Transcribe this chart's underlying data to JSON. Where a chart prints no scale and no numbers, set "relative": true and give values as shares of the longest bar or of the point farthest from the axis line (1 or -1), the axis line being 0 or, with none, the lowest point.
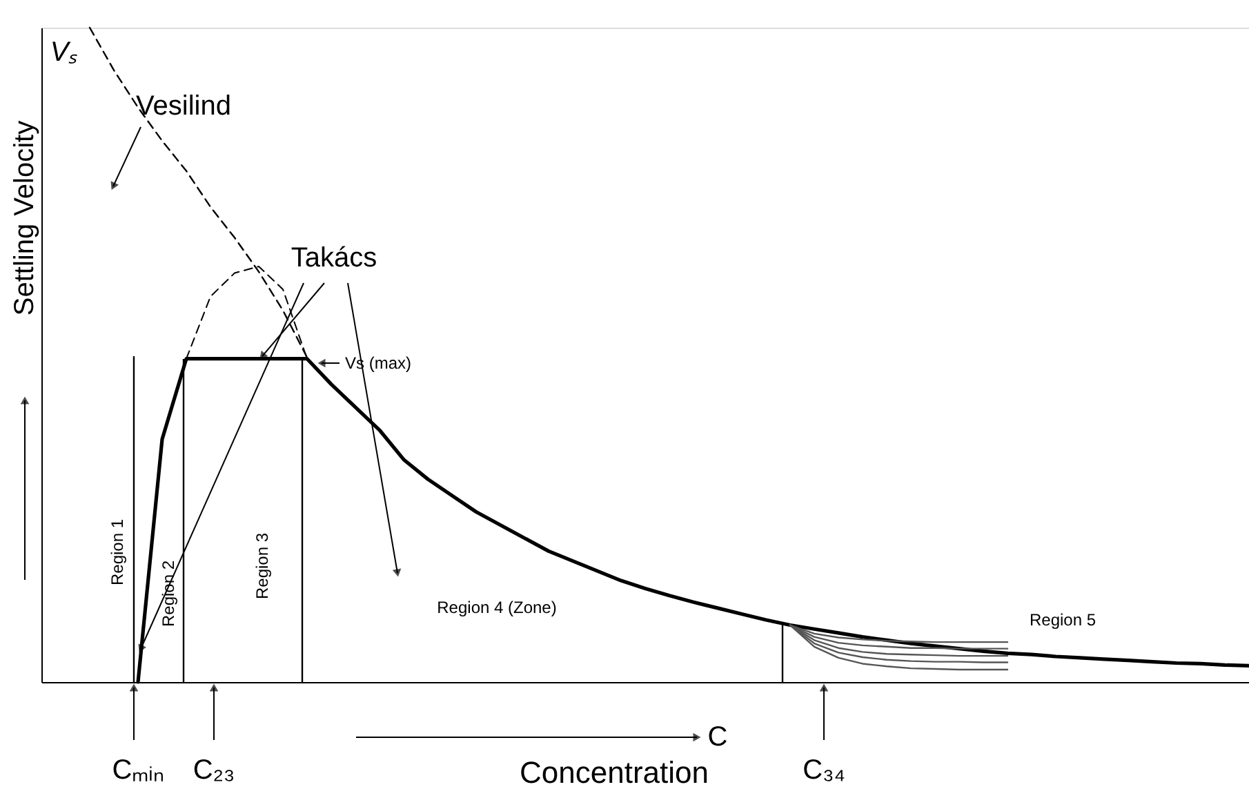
{
  "chart_data": {
    "type": "line",
    "relative": true,
    "xlabel": "Concentration",
    "ylabel": "Settling Velocity",
    "tick_labels": false,
    "categories": [
      null,
      null,
      null,
      null,
      null,
      null,
      null,
      null,
      null,
      null,
      null,
      null,
      null,
      null,
      null,
      null,
      null,
      null,
      null,
      null,
      null,
      null,
      null,
      null,
      null,
      null,
      null,
      null,
      null,
      null,
      null,
      null,
      null,
      null,
      null,
      null,
      null,
      null,
      null,
      null,
      null,
      null,
      null,
      null,
      null,
      null,
      null,
      null,
      null,
      null,
      null
    ],
    "series": [
      {
        "color": "#000000",
        "line_style": "dashed",
        "values": [
          null,
          null,
          1.0,
          0.935,
          0.878,
          0.827,
          0.781,
          0.726,
          0.679,
          0.627,
          0.568,
          0.496,
          null,
          null,
          null,
          null,
          null,
          null,
          null,
          null,
          null,
          null,
          null,
          null,
          null,
          null,
          null,
          null,
          null,
          null,
          null,
          null,
          null,
          null,
          null,
          null,
          null,
          null,
          null,
          null,
          null,
          null,
          null,
          null,
          null,
          null,
          null,
          null,
          null,
          null,
          null
        ]
      },
      {
        "color": "#000000",
        "line_style": "solid",
        "values": [
          null,
          null,
          null,
          null,
          0,
          0.371,
          0.494,
          0.494,
          0.494,
          0.494,
          0.494,
          0.494,
          0.455,
          0.42,
          0.385,
          0.34,
          0.31,
          0.285,
          0.26,
          0.24,
          0.22,
          0.2,
          0.185,
          0.17,
          0.155,
          0.143,
          0.132,
          0.122,
          0.113,
          0.104,
          0.095,
          0.087,
          0.081,
          0.075,
          0.069,
          0.064,
          0.059,
          0.055,
          0.051,
          0.047,
          0.044,
          0.042,
          0.039,
          0.037,
          0.035,
          0.033,
          0.031,
          0.029,
          0.028,
          0.026,
          0.025
        ]
      },
      {
        "color": "#000000",
        "line_style": "dashed",
        "values": [
          null,
          null,
          null,
          null,
          null,
          null,
          0.494,
          0.589,
          0.625,
          0.635,
          0.6,
          0.494,
          null,
          null,
          null,
          null,
          null,
          null,
          null,
          null,
          null,
          null,
          null,
          null,
          null,
          null,
          null,
          null,
          null,
          null,
          null,
          null,
          null,
          null,
          null,
          null,
          null,
          null,
          null,
          null,
          null,
          null,
          null,
          null,
          null,
          null,
          null,
          null,
          null,
          null,
          null
        ]
      },
      {
        "color": "#555555",
        "line_style": "solid",
        "values": [
          null,
          null,
          null,
          null,
          null,
          null,
          null,
          null,
          null,
          null,
          null,
          null,
          null,
          null,
          null,
          null,
          null,
          null,
          null,
          null,
          null,
          null,
          null,
          null,
          null,
          null,
          null,
          null,
          null,
          null,
          null,
          0.087,
          0.074,
          0.068,
          0.065,
          0.063,
          0.062,
          0.061,
          0.061,
          0.061,
          0.061,
          null,
          null,
          null,
          null,
          null,
          null,
          null,
          null,
          null,
          null
        ]
      },
      {
        "color": "#555555",
        "line_style": "solid",
        "values": [
          null,
          null,
          null,
          null,
          null,
          null,
          null,
          null,
          null,
          null,
          null,
          null,
          null,
          null,
          null,
          null,
          null,
          null,
          null,
          null,
          null,
          null,
          null,
          null,
          null,
          null,
          null,
          null,
          null,
          null,
          null,
          0.087,
          0.069,
          0.06,
          0.056,
          0.054,
          0.052,
          0.052,
          0.051,
          0.051,
          0.051,
          null,
          null,
          null,
          null,
          null,
          null,
          null,
          null,
          null,
          null
        ]
      },
      {
        "color": "#555555",
        "line_style": "solid",
        "values": [
          null,
          null,
          null,
          null,
          null,
          null,
          null,
          null,
          null,
          null,
          null,
          null,
          null,
          null,
          null,
          null,
          null,
          null,
          null,
          null,
          null,
          null,
          null,
          null,
          null,
          null,
          null,
          null,
          null,
          null,
          null,
          0.087,
          0.064,
          0.052,
          0.046,
          0.043,
          0.042,
          0.041,
          0.04,
          0.04,
          0.04,
          null,
          null,
          null,
          null,
          null,
          null,
          null,
          null,
          null,
          null
        ]
      },
      {
        "color": "#555555",
        "line_style": "solid",
        "values": [
          null,
          null,
          null,
          null,
          null,
          null,
          null,
          null,
          null,
          null,
          null,
          null,
          null,
          null,
          null,
          null,
          null,
          null,
          null,
          null,
          null,
          null,
          null,
          null,
          null,
          null,
          null,
          null,
          null,
          null,
          null,
          0.087,
          0.059,
          0.045,
          0.038,
          0.034,
          0.032,
          0.031,
          0.031,
          0.03,
          0.03,
          null,
          null,
          null,
          null,
          null,
          null,
          null,
          null,
          null,
          null
        ]
      },
      {
        "color": "#555555",
        "line_style": "solid",
        "values": [
          null,
          null,
          null,
          null,
          null,
          null,
          null,
          null,
          null,
          null,
          null,
          null,
          null,
          null,
          null,
          null,
          null,
          null,
          null,
          null,
          null,
          null,
          null,
          null,
          null,
          null,
          null,
          null,
          null,
          null,
          null,
          0.087,
          0.054,
          0.037,
          0.028,
          0.024,
          0.021,
          0.02,
          0.019,
          0.019,
          0.019,
          null,
          null,
          null,
          null,
          null,
          null,
          null,
          null,
          null,
          null
        ]
      }
    ],
    "annotations": [
      "Region 1",
      "Region 2",
      "Region 3",
      "Region 4 (Zone)",
      "Region 5",
      "Vesilind",
      "Takács",
      "Vs (max)",
      "Cₘᵢₙ",
      "C₂₃",
      "C₃₄",
      "Vₛ",
      "C"
    ]
  }
}
